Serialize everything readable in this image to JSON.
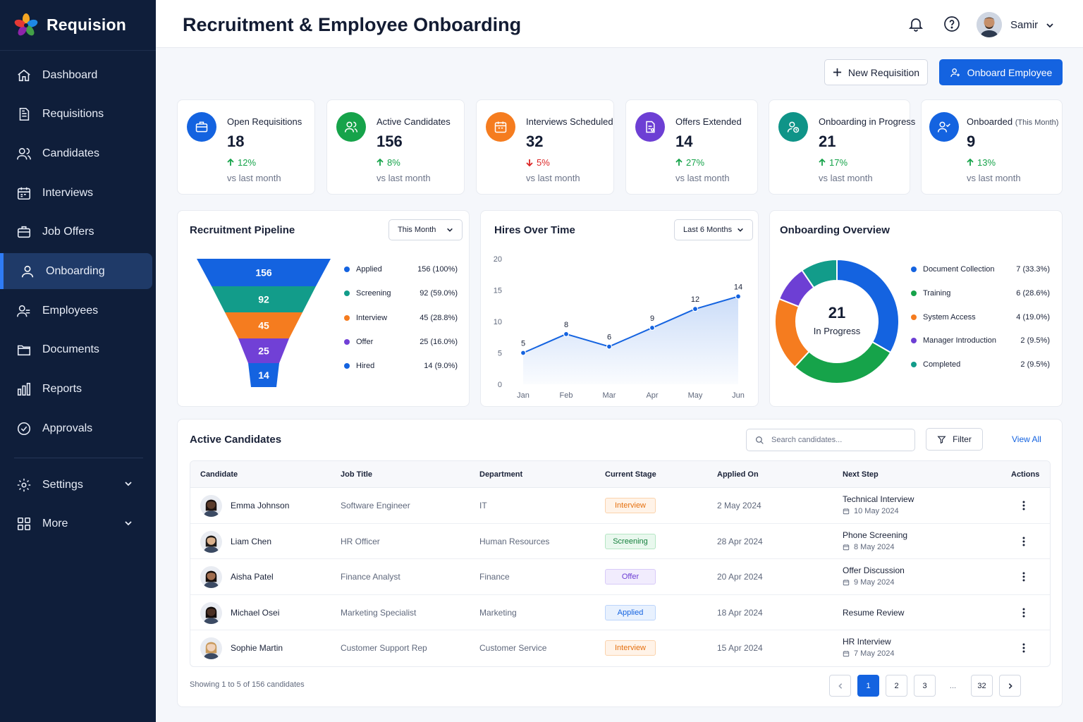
{
  "brand": {
    "name": "Requision"
  },
  "sidebar": {
    "items": [
      {
        "label": "Dashboard",
        "icon": "home-icon"
      },
      {
        "label": "Requisitions",
        "icon": "document-icon"
      },
      {
        "label": "Candidates",
        "icon": "users-icon"
      },
      {
        "label": "Interviews",
        "icon": "calendar-icon"
      },
      {
        "label": "Job Offers",
        "icon": "briefcase-icon"
      },
      {
        "label": "Onboarding",
        "icon": "user-icon",
        "active": true
      },
      {
        "label": "Employees",
        "icon": "team-icon"
      },
      {
        "label": "Documents",
        "icon": "folder-icon"
      },
      {
        "label": "Reports",
        "icon": "bar-chart-icon"
      },
      {
        "label": "Approvals",
        "icon": "check-circle-icon"
      }
    ],
    "bottom": [
      {
        "label": "Settings",
        "icon": "gear-icon"
      },
      {
        "label": "More",
        "icon": "grid-icon"
      }
    ]
  },
  "header": {
    "title": "Recruitment & Employee Onboarding",
    "user_name": "Samir"
  },
  "actions": {
    "new_requisition": "New Requisition",
    "onboard_employee": "Onboard Employee"
  },
  "stats": [
    {
      "label": "Open Requisitions",
      "value": "18",
      "change": "12%",
      "direction": "up",
      "sub": "vs last month",
      "color": "#1463e0"
    },
    {
      "label": "Active Candidates",
      "value": "156",
      "change": "8%",
      "direction": "up",
      "sub": "vs last month",
      "color": "#16a34a"
    },
    {
      "label": "Interviews Scheduled",
      "value": "32",
      "change": "5%",
      "direction": "down",
      "sub": "vs last month",
      "color": "#f57c1f"
    },
    {
      "label": "Offers Extended",
      "value": "14",
      "change": "27%",
      "direction": "up",
      "sub": "vs last month",
      "color": "#6d3fd4"
    },
    {
      "label": "Onboarding in Progress",
      "value": "21",
      "change": "17%",
      "direction": "up",
      "sub": "vs last month",
      "color": "#0f9488"
    },
    {
      "label": "Onboarded",
      "label_suffix": "(This Month)",
      "value": "9",
      "change": "13%",
      "direction": "up",
      "sub": "vs last month",
      "color": "#1463e0"
    }
  ],
  "pipeline": {
    "title": "Recruitment Pipeline",
    "filter": "This Month",
    "stages": [
      {
        "name": "Applied",
        "value": 156,
        "label": "156 (100%)",
        "color": "#1463e0"
      },
      {
        "name": "Screening",
        "value": 92,
        "label": "92 (59.0%)",
        "color": "#129c8a"
      },
      {
        "name": "Interview",
        "value": 45,
        "label": "45 (28.8%)",
        "color": "#f57c1f"
      },
      {
        "name": "Offer",
        "value": 25,
        "label": "25 (16.0%)",
        "color": "#7140d6"
      },
      {
        "name": "Hired",
        "value": 14,
        "label": "14 (9.0%)",
        "color": "#1463e0"
      }
    ]
  },
  "hires": {
    "title": "Hires Over Time",
    "filter": "Last 6 Months"
  },
  "onboarding": {
    "title": "Onboarding Overview",
    "center_value": "21",
    "center_label": "In Progress",
    "segments": [
      {
        "name": "Document Collection",
        "value": 7,
        "label": "7 (33.3%)",
        "color": "#1463e0"
      },
      {
        "name": "Training",
        "value": 6,
        "label": "6 (28.6%)",
        "color": "#16a34a"
      },
      {
        "name": "System Access",
        "value": 4,
        "label": "4 (19.0%)",
        "color": "#f57c1f"
      },
      {
        "name": "Manager Introduction",
        "value": 2,
        "label": "2 (9.5%)",
        "color": "#6d3fd4"
      },
      {
        "name": "Completed",
        "value": 2,
        "label": "2 (9.5%)",
        "color": "#129c8a"
      }
    ]
  },
  "chart_data": {
    "type": "area",
    "title": "Hires Over Time",
    "categories": [
      "Jan",
      "Feb",
      "Mar",
      "Apr",
      "May",
      "Jun"
    ],
    "values": [
      5,
      8,
      6,
      9,
      12,
      14
    ],
    "ylim": [
      0,
      20
    ],
    "yticks": [
      0,
      5,
      10,
      15,
      20
    ],
    "grid": false,
    "color": "#1463e0"
  },
  "candidates": {
    "title": "Active Candidates",
    "search_placeholder": "Search candidates...",
    "filter_label": "Filter",
    "view_all": "View All",
    "columns": [
      "Candidate",
      "Job Title",
      "Department",
      "Current Stage",
      "Applied On",
      "Next Step",
      "Actions"
    ],
    "rows": [
      {
        "name": "Emma Johnson",
        "job": "Software Engineer",
        "dept": "IT",
        "stage": "Interview",
        "applied": "2 May 2024",
        "next": "Technical Interview",
        "next_date": "10 May 2024",
        "skin": "#5a3a2a",
        "hair": "#1c1210"
      },
      {
        "name": "Liam Chen",
        "job": "HR Officer",
        "dept": "Human Resources",
        "stage": "Screening",
        "applied": "28 Apr 2024",
        "next": "Phone Screening",
        "next_date": "8 May 2024",
        "skin": "#d9b08c",
        "hair": "#1e1a18"
      },
      {
        "name": "Aisha Patel",
        "job": "Finance Analyst",
        "dept": "Finance",
        "stage": "Offer",
        "applied": "20 Apr 2024",
        "next": "Offer Discussion",
        "next_date": "9 May 2024",
        "skin": "#a06d4f",
        "hair": "#160f0c"
      },
      {
        "name": "Michael Osei",
        "job": "Marketing Specialist",
        "dept": "Marketing",
        "stage": "Applied",
        "applied": "18 Apr 2024",
        "next": "Resume Review",
        "next_date": "",
        "skin": "#4a3024",
        "hair": "#120c0a"
      },
      {
        "name": "Sophie Martin",
        "job": "Customer Support Rep",
        "dept": "Customer Service",
        "stage": "Interview",
        "applied": "15 Apr 2024",
        "next": "HR Interview",
        "next_date": "7 May 2024",
        "skin": "#f0d2bb",
        "hair": "#c99a5c"
      }
    ],
    "stage_styles": {
      "Interview": {
        "bg": "#fff3e8",
        "border": "#fbd3ad",
        "color": "#e5700f"
      },
      "Screening": {
        "bg": "#e9f8ee",
        "border": "#b5e6c4",
        "color": "#15803d"
      },
      "Offer": {
        "bg": "#f1ecfd",
        "border": "#d8caf8",
        "color": "#6d3fd4"
      },
      "Applied": {
        "bg": "#e8f1fe",
        "border": "#bcd5fb",
        "color": "#1463e0"
      }
    },
    "footer": "Showing 1 to 5 of 156 candidates",
    "pages": [
      "1",
      "2",
      "3",
      "...",
      "32"
    ]
  }
}
